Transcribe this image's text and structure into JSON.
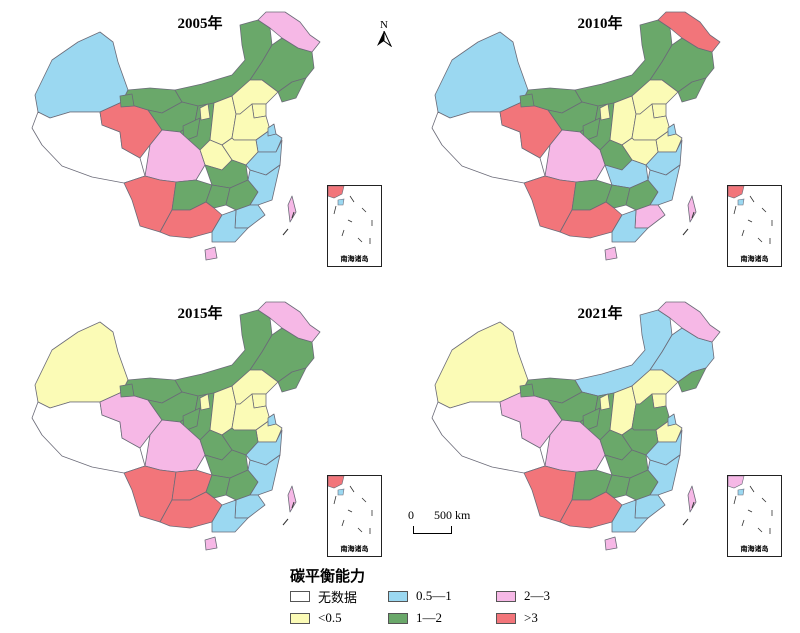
{
  "panels": [
    {
      "year": "2005年",
      "colors": [
        "cyan",
        "white",
        "red",
        "green",
        "green",
        "green",
        "pink",
        "green",
        "green",
        "green",
        "green",
        "yellow",
        "yellow",
        "yellow",
        "yellow",
        "cyan",
        "yellow",
        "yellow",
        "green",
        "pink",
        "red",
        "green",
        "green",
        "red",
        "green",
        "cyan",
        "cyan",
        "cyan",
        "cyan",
        "pink",
        "pink",
        "cyan",
        "green",
        "yellow"
      ]
    },
    {
      "year": "2010年",
      "colors": [
        "cyan",
        "white",
        "red",
        "green",
        "green",
        "green",
        "red",
        "green",
        "green",
        "green",
        "green",
        "yellow",
        "yellow",
        "yellow",
        "yellow",
        "yellow",
        "yellow",
        "green",
        "cyan",
        "pink",
        "red",
        "green",
        "green",
        "red",
        "green",
        "cyan",
        "cyan",
        "pink",
        "cyan",
        "pink",
        "pink",
        "cyan",
        "green",
        "yellow"
      ]
    },
    {
      "year": "2015年",
      "colors": [
        "yellow",
        "white",
        "pink",
        "green",
        "green",
        "green",
        "pink",
        "green",
        "green",
        "green",
        "green",
        "yellow",
        "yellow",
        "yellow",
        "yellow",
        "yellow",
        "green",
        "green",
        "green",
        "pink",
        "red",
        "red",
        "green",
        "red",
        "green",
        "cyan",
        "cyan",
        "cyan",
        "cyan",
        "pink",
        "pink",
        "cyan",
        "green",
        "yellow"
      ]
    },
    {
      "year": "2021年",
      "colors": [
        "yellow",
        "white",
        "pink",
        "green",
        "cyan",
        "cyan",
        "pink",
        "green",
        "green",
        "green",
        "green",
        "yellow",
        "yellow",
        "yellow",
        "green",
        "yellow",
        "green",
        "green",
        "green",
        "pink",
        "red",
        "green",
        "green",
        "red",
        "green",
        "cyan",
        "cyan",
        "cyan",
        "cyan",
        "pink",
        "pink",
        "cyan",
        "green",
        "yellow"
      ]
    }
  ],
  "legend": {
    "title": "碳平衡能力",
    "items": [
      {
        "key": "white",
        "label": "无数据",
        "color": "#ffffff"
      },
      {
        "key": "yellow",
        "label": "<0.5",
        "color": "#fbfbb6"
      },
      {
        "key": "cyan",
        "label": "0.5—1",
        "color": "#9bd8f1"
      },
      {
        "key": "green",
        "label": "1—2",
        "color": "#6aa86a"
      },
      {
        "key": "pink",
        "label": "2—3",
        "color": "#f6b8e6"
      },
      {
        "key": "red",
        "label": ">3",
        "color": "#f2757a"
      }
    ]
  },
  "inset_label": "南海诸岛",
  "north_label": "N",
  "scale": {
    "zero": "0",
    "length": "500 km"
  }
}
